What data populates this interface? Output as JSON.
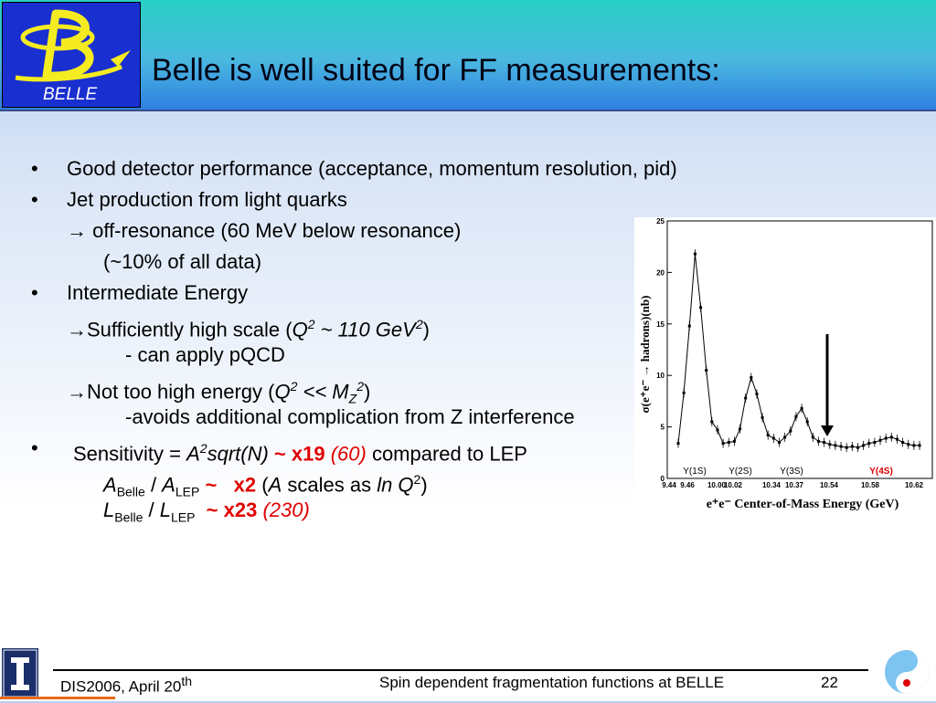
{
  "slide": {
    "title": "Belle is well suited for FF measurements:",
    "logo_text": "BELLE",
    "bullets": {
      "b1": "Good detector performance (acceptance, momentum resolution, pid)",
      "b2": "Jet production from light quarks",
      "b2_sub1": "→ off-resonance (60 MeV below resonance)",
      "b2_sub2": "(~10% of all data)",
      "b3": "Intermediate Energy",
      "b3_sub1_pre": "→Sufficiently high scale (",
      "b3_sub1_q": "Q",
      "b3_sub1_q_sup": "2",
      "b3_sub1_val": " ~ 110 GeV",
      "b3_sub1_val_sup": "2",
      "b3_sub1_post": ")",
      "b3_sub2": "- can apply pQCD",
      "b3_sub3_pre": "→Not too high energy (",
      "b3_sub3_q": "Q",
      "b3_sub3_q_sup": "2",
      "b3_sub3_mid": " << M",
      "b3_sub3_sub": "Z",
      "b3_sub3_sup": "2",
      "b3_sub3_post": ")",
      "b3_sub4": "-avoids additional complication from Z interference",
      "b4_pre": "Sensitivity = ",
      "b4_a": "A",
      "b4_sup": "2",
      "b4_sqrt": "sqrt(N)",
      "b4_x19": " ~ x19 ",
      "b4_60": "(60)",
      "b4_post": " compared to LEP",
      "a_ratio_a1": "A",
      "a_ratio_sub1": "Belle",
      "a_ratio_slash": " / ",
      "a_ratio_a2": "A",
      "a_ratio_sub2": "LEP",
      "a_ratio_x2": " ~   x2",
      "a_ratio_pre": " (",
      "a_ratio_a3": "A",
      "a_ratio_mid": " scales as ",
      "a_ratio_ln": "ln Q",
      "a_ratio_lnsup": "2",
      "a_ratio_post": ")",
      "l_ratio_l1": "L",
      "l_ratio_sub1": "Belle",
      "l_ratio_slash": " / ",
      "l_ratio_l2": "L",
      "l_ratio_sub2": "LEP",
      "l_ratio_x23": "  ~ x23 ",
      "l_ratio_230": "(230)"
    }
  },
  "footer": {
    "left": "DIS2006, April 20",
    "left_sup": "th",
    "center": "Spin dependent fragmentation functions at BELLE",
    "page": "22"
  },
  "chart_data": {
    "type": "scatter",
    "ylabel": "σ(e⁺e⁻ → hadrons)(nb)",
    "xlabel": "e⁺e⁻ Center-of-Mass Energy (GeV)",
    "ylim": [
      0,
      25
    ],
    "yticks": [
      "0",
      "5",
      "10",
      "15",
      "20",
      "25"
    ],
    "xticks": [
      "9.44",
      "9.46",
      "10.00",
      "10.02",
      "10.34",
      "10.37",
      "10.54",
      "10.58",
      "10.62"
    ],
    "annotations": [
      "Υ(1S)",
      "Υ(2S)",
      "Υ(3S)",
      "Υ(4S)"
    ],
    "colors": {
      "highlight": "#e00000"
    },
    "series": [
      {
        "values": [
          3.4,
          8.3,
          14.8,
          21.8,
          16.6,
          10.5,
          5.5,
          4.7,
          3.4,
          3.5,
          3.6,
          4.8,
          7.8,
          9.8,
          8.2,
          5.9,
          4.2,
          3.9,
          3.5,
          4.0,
          4.6,
          6.0,
          6.8,
          5.5,
          4.0,
          3.6,
          3.5,
          3.3,
          3.2,
          3.1,
          3.0,
          3.1,
          3.0,
          3.2,
          3.4,
          3.5,
          3.7,
          3.9,
          4.0,
          3.8,
          3.5,
          3.3,
          3.2,
          3.2
        ]
      }
    ],
    "arrow_energy_note": ""
  }
}
